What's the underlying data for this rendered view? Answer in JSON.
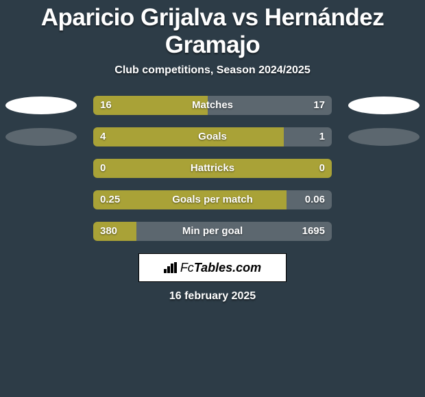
{
  "title": "Aparicio Grijalva vs Hernández Gramajo",
  "subtitle": "Club competitions, Season 2024/2025",
  "date": "16 february 2025",
  "colors": {
    "background": "#2d3c47",
    "olive": "#a9a237",
    "grey": "#5c676f",
    "white": "#ffffff",
    "text": "#ffffff"
  },
  "logo": {
    "text_prefix": "Fc",
    "text_main": "Tables.com"
  },
  "rows": [
    {
      "metric": "Matches",
      "left_val": "16",
      "right_val": "17",
      "left_pct": 48,
      "right_pct": 52,
      "left_color": "#a9a237",
      "right_color": "#5c676f",
      "oval_left": "white",
      "oval_right": "white"
    },
    {
      "metric": "Goals",
      "left_val": "4",
      "right_val": "1",
      "left_pct": 80,
      "right_pct": 20,
      "left_color": "#a9a237",
      "right_color": "#5c676f",
      "oval_left": "grey",
      "oval_right": "grey"
    },
    {
      "metric": "Hattricks",
      "left_val": "0",
      "right_val": "0",
      "left_pct": 100,
      "right_pct": 0,
      "left_color": "#a9a237",
      "right_color": "#5c676f",
      "oval_left": "none",
      "oval_right": "none"
    },
    {
      "metric": "Goals per match",
      "left_val": "0.25",
      "right_val": "0.06",
      "left_pct": 81,
      "right_pct": 19,
      "left_color": "#a9a237",
      "right_color": "#5c676f",
      "oval_left": "none",
      "oval_right": "none"
    },
    {
      "metric": "Min per goal",
      "left_val": "380",
      "right_val": "1695",
      "left_pct": 18,
      "right_pct": 82,
      "left_color": "#a9a237",
      "right_color": "#5c676f",
      "oval_left": "none",
      "oval_right": "none"
    }
  ]
}
